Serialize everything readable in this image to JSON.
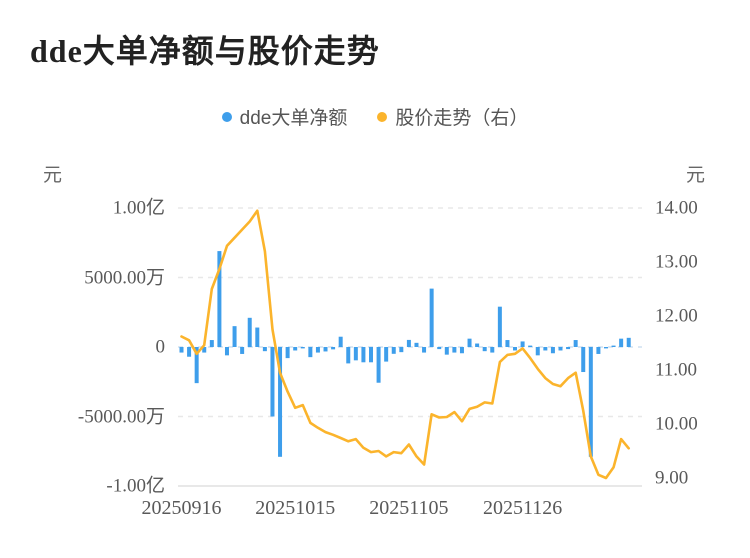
{
  "chart": {
    "title": "dde大单净额与股价走势",
    "left_unit": "元",
    "right_unit": "元"
  },
  "chart_data": {
    "type": "bar+line combo (dual axis)",
    "title": "dde大单净额与股价走势",
    "legend": [
      {
        "label": "dde大单净额",
        "color": "#3E9EEB",
        "marker": "circle",
        "series_type": "bar",
        "axis": "left"
      },
      {
        "label": "股价走势（右）",
        "color": "#FBB42C",
        "marker": "circle",
        "series_type": "line",
        "axis": "right"
      }
    ],
    "left_axis": {
      "unit": "元",
      "tick_labels": [
        "1.00亿",
        "5000.00万",
        "0",
        "-5000.00万",
        "-1.00亿"
      ],
      "tick_values_wan": [
        10000,
        5000,
        0,
        -5000,
        -10000
      ],
      "range_wan": [
        -10000,
        10000
      ],
      "grid": "dashed"
    },
    "right_axis": {
      "unit": "元",
      "tick_labels": [
        "14.00",
        "13.00",
        "12.00",
        "11.00",
        "10.00",
        "9.00"
      ],
      "tick_values": [
        14,
        13,
        12,
        11,
        10,
        9
      ],
      "range": [
        9,
        14
      ]
    },
    "x_axis": {
      "tick_labels": [
        "20250916",
        "20251015",
        "20251105",
        "20251126"
      ],
      "tick_indices": [
        0,
        15,
        30,
        45
      ],
      "point_count": 60
    },
    "series": [
      {
        "name": "dde大单净额",
        "unit": "万元",
        "values": [
          -400,
          -700,
          -2600,
          -400,
          500,
          6900,
          -600,
          1500,
          -500,
          2100,
          1400,
          -300,
          -5000,
          -7900,
          -800,
          -250,
          -100,
          -730,
          -400,
          -320,
          -170,
          740,
          -1180,
          -960,
          -1100,
          -1100,
          -2570,
          -1050,
          -490,
          -370,
          510,
          300,
          -400,
          4200,
          -150,
          -550,
          -400,
          -450,
          600,
          250,
          -300,
          -400,
          2900,
          500,
          -250,
          400,
          100,
          -600,
          -250,
          -450,
          -250,
          -150,
          500,
          -1800,
          -7900,
          -500,
          -100,
          100,
          600,
          660
        ]
      },
      {
        "name": "股价走势（右）",
        "unit": "元",
        "values": [
          11.62,
          11.55,
          11.3,
          11.46,
          12.5,
          12.87,
          13.3,
          13.45,
          13.6,
          13.75,
          13.95,
          13.2,
          11.75,
          10.95,
          10.6,
          10.3,
          10.35,
          10.02,
          9.93,
          9.85,
          9.8,
          9.74,
          9.68,
          9.72,
          9.56,
          9.48,
          9.5,
          9.4,
          9.48,
          9.46,
          9.62,
          9.4,
          9.25,
          10.18,
          10.12,
          10.13,
          10.22,
          10.05,
          10.28,
          10.32,
          10.4,
          10.38,
          11.15,
          11.28,
          11.3,
          11.4,
          11.22,
          11.02,
          10.85,
          10.74,
          10.7,
          10.85,
          10.95,
          10.25,
          9.4,
          9.06,
          9.0,
          9.2,
          9.72,
          9.55
        ]
      }
    ],
    "colors": {
      "bar": "#3E9EEB",
      "line": "#FBB42C",
      "grid": "#e8e8e8",
      "zero_line": "#cfe0f0",
      "bottom_line": "#e0e0e0",
      "axis_text": "#595959",
      "title_text": "#222222",
      "legend_text": "#555555"
    }
  }
}
